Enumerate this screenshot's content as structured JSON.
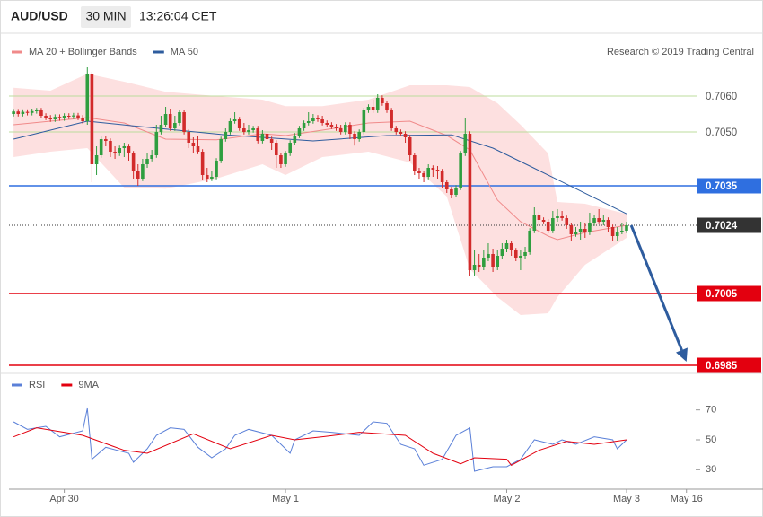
{
  "chart_data": [
    {
      "type": "candlestick",
      "title": "AUD/USD",
      "interval": "30 MIN",
      "time": "13:26:04 CET",
      "source": "Research © 2019 Trading Central",
      "xlim": [
        -1,
        148
      ],
      "ylim": [
        0.6984,
        0.7071
      ],
      "up_color": "#2f9e3f",
      "down_color": "#d22b2b",
      "open": [
        0.7055,
        0.70557,
        0.7055,
        0.70556,
        0.70553,
        0.70558,
        0.7056,
        0.70545,
        0.7054,
        0.70535,
        0.70542,
        0.70538,
        0.70545,
        0.70543,
        0.70546,
        0.7054,
        0.7053,
        0.7066,
        0.7041,
        0.70435,
        0.7048,
        0.70475,
        0.70445,
        0.7044,
        0.70455,
        0.7046,
        0.7044,
        0.7039,
        0.7037,
        0.7041,
        0.70425,
        0.70435,
        0.705,
        0.7052,
        0.7055,
        0.7051,
        0.70525,
        0.70555,
        0.705,
        0.7047,
        0.7046,
        0.70445,
        0.7038,
        0.7037,
        0.70375,
        0.7042,
        0.7048,
        0.705,
        0.7053,
        0.70535,
        0.7051,
        0.705,
        0.70505,
        0.7051,
        0.70475,
        0.70495,
        0.7048,
        0.7047,
        0.70435,
        0.7041,
        0.7044,
        0.7047,
        0.7049,
        0.7051,
        0.70525,
        0.7053,
        0.7054,
        0.70535,
        0.70525,
        0.7052,
        0.70515,
        0.7051,
        0.705,
        0.7052,
        0.70495,
        0.7048,
        0.705,
        0.7056,
        0.7057,
        0.7056,
        0.70595,
        0.7058,
        0.7056,
        0.7051,
        0.705,
        0.70495,
        0.70485,
        0.70435,
        0.7039,
        0.70385,
        0.70375,
        0.704,
        0.70395,
        0.7039,
        0.7036,
        0.7034,
        0.70325,
        0.70345,
        0.7044,
        0.70495,
        0.70115,
        0.7013,
        0.70125,
        0.7015,
        0.7016,
        0.70125,
        0.70155,
        0.70175,
        0.7019,
        0.7017,
        0.7015,
        0.70155,
        0.70165,
        0.70225,
        0.7027,
        0.70255,
        0.7025,
        0.70225,
        0.7026,
        0.70265,
        0.7026,
        0.7024,
        0.70215,
        0.7022,
        0.7023,
        0.7022,
        0.70245,
        0.7026,
        0.7025,
        0.70255,
        0.70235,
        0.7021,
        0.7022,
        0.70225
      ],
      "high": [
        0.70564,
        0.70564,
        0.70563,
        0.70563,
        0.70565,
        0.70567,
        0.70567,
        0.70552,
        0.70547,
        0.70549,
        0.70549,
        0.70552,
        0.70552,
        0.70553,
        0.70553,
        0.70547,
        0.7068,
        0.70667,
        0.7046,
        0.70487,
        0.7049,
        0.70482,
        0.7046,
        0.70462,
        0.7047,
        0.70467,
        0.70447,
        0.7041,
        0.70425,
        0.7044,
        0.7045,
        0.7052,
        0.70545,
        0.7057,
        0.70565,
        0.70545,
        0.70562,
        0.70562,
        0.70507,
        0.70485,
        0.7049,
        0.70452,
        0.704,
        0.7039,
        0.70427,
        0.70487,
        0.7051,
        0.70537,
        0.70555,
        0.70542,
        0.70525,
        0.7052,
        0.70517,
        0.70517,
        0.70505,
        0.70502,
        0.70487,
        0.70477,
        0.70442,
        0.70447,
        0.70477,
        0.70497,
        0.70517,
        0.70532,
        0.70555,
        0.7055,
        0.70547,
        0.70545,
        0.70532,
        0.70527,
        0.70522,
        0.7052,
        0.70527,
        0.70527,
        0.70502,
        0.70507,
        0.70567,
        0.70577,
        0.7059,
        0.70605,
        0.70602,
        0.70587,
        0.70567,
        0.70517,
        0.70507,
        0.70502,
        0.70492,
        0.70442,
        0.704,
        0.70392,
        0.7041,
        0.70407,
        0.70405,
        0.70397,
        0.70367,
        0.70347,
        0.70352,
        0.70447,
        0.7054,
        0.70502,
        0.7017,
        0.7016,
        0.7017,
        0.7019,
        0.70175,
        0.7017,
        0.7019,
        0.702,
        0.70197,
        0.70177,
        0.7017,
        0.7018,
        0.70232,
        0.7029,
        0.70277,
        0.70262,
        0.70257,
        0.7028,
        0.70285,
        0.7028,
        0.70267,
        0.70247,
        0.70235,
        0.7025,
        0.70245,
        0.70275,
        0.7027,
        0.70285,
        0.7027,
        0.70262,
        0.70242,
        0.70235,
        0.70245,
        0.7025
      ],
      "low": [
        0.70543,
        0.70543,
        0.70543,
        0.70546,
        0.70546,
        0.70551,
        0.70538,
        0.70533,
        0.70528,
        0.70528,
        0.70531,
        0.70531,
        0.70536,
        0.70536,
        0.70533,
        0.70523,
        0.7052,
        0.7036,
        0.7038,
        0.70428,
        0.7046,
        0.7043,
        0.70425,
        0.70433,
        0.7043,
        0.7042,
        0.7037,
        0.7035,
        0.70363,
        0.704,
        0.70418,
        0.70428,
        0.70493,
        0.70513,
        0.70503,
        0.70503,
        0.70518,
        0.70493,
        0.70455,
        0.7044,
        0.70438,
        0.70365,
        0.7036,
        0.70363,
        0.70368,
        0.70413,
        0.70473,
        0.70493,
        0.70523,
        0.70503,
        0.70493,
        0.70493,
        0.70498,
        0.70468,
        0.70468,
        0.70473,
        0.7045,
        0.704,
        0.704,
        0.70403,
        0.70433,
        0.70463,
        0.70483,
        0.70503,
        0.70518,
        0.70523,
        0.70528,
        0.70518,
        0.70513,
        0.70508,
        0.70503,
        0.70493,
        0.70493,
        0.7048,
        0.70462,
        0.70473,
        0.70493,
        0.70553,
        0.70553,
        0.70553,
        0.70573,
        0.70553,
        0.70503,
        0.70493,
        0.70488,
        0.7047,
        0.7042,
        0.7038,
        0.7037,
        0.7036,
        0.70368,
        0.70375,
        0.7037,
        0.70345,
        0.7033,
        0.70315,
        0.70318,
        0.70338,
        0.70433,
        0.701,
        0.701,
        0.7011,
        0.70115,
        0.7014,
        0.7011,
        0.70115,
        0.70145,
        0.70165,
        0.70155,
        0.7014,
        0.70115,
        0.70145,
        0.70158,
        0.70218,
        0.7024,
        0.70243,
        0.70218,
        0.70218,
        0.7025,
        0.70253,
        0.7023,
        0.70195,
        0.70208,
        0.702,
        0.70205,
        0.70213,
        0.70238,
        0.70243,
        0.7024,
        0.7022,
        0.70195,
        0.70195,
        0.70215,
        0.70218
      ],
      "close": [
        0.70557,
        0.7055,
        0.70556,
        0.70553,
        0.70558,
        0.7056,
        0.70545,
        0.7054,
        0.70535,
        0.70542,
        0.70538,
        0.70545,
        0.70543,
        0.70546,
        0.7054,
        0.7053,
        0.7066,
        0.7041,
        0.70435,
        0.7048,
        0.70475,
        0.70445,
        0.7044,
        0.70455,
        0.7046,
        0.7044,
        0.7039,
        0.7037,
        0.7041,
        0.70425,
        0.70435,
        0.705,
        0.7052,
        0.7055,
        0.7051,
        0.70525,
        0.70555,
        0.705,
        0.7047,
        0.7046,
        0.70445,
        0.7038,
        0.7037,
        0.70375,
        0.7042,
        0.7048,
        0.705,
        0.7053,
        0.70535,
        0.7051,
        0.705,
        0.70505,
        0.7051,
        0.70475,
        0.70495,
        0.7048,
        0.7047,
        0.70435,
        0.7041,
        0.7044,
        0.7047,
        0.7049,
        0.7051,
        0.70525,
        0.7053,
        0.7054,
        0.70535,
        0.70525,
        0.7052,
        0.70515,
        0.7051,
        0.705,
        0.7052,
        0.70495,
        0.7048,
        0.705,
        0.7056,
        0.7057,
        0.7056,
        0.70595,
        0.7058,
        0.7056,
        0.7051,
        0.705,
        0.70495,
        0.70485,
        0.70435,
        0.7039,
        0.70385,
        0.70375,
        0.704,
        0.70395,
        0.7039,
        0.7036,
        0.7034,
        0.70325,
        0.70345,
        0.7044,
        0.70495,
        0.70115,
        0.7013,
        0.70125,
        0.7015,
        0.7016,
        0.70125,
        0.70155,
        0.70175,
        0.7019,
        0.7017,
        0.7015,
        0.70155,
        0.70165,
        0.70225,
        0.7027,
        0.70255,
        0.7025,
        0.70225,
        0.7026,
        0.70265,
        0.7026,
        0.7024,
        0.70215,
        0.7022,
        0.7023,
        0.7022,
        0.70245,
        0.7026,
        0.7025,
        0.70255,
        0.70235,
        0.7021,
        0.7022,
        0.70225,
        0.7024
      ],
      "series": [
        {
          "name": "MA 20 + Bollinger Bands",
          "color": "#f08a8a",
          "band_color": "#fde0e0",
          "x": [
            0,
            8,
            16,
            24,
            33,
            44,
            54,
            59,
            67,
            77,
            86,
            94,
            99,
            105,
            110,
            116,
            118,
            124,
            133
          ],
          "values": [
            0.7052,
            0.7053,
            0.7054,
            0.70525,
            0.7048,
            0.70478,
            0.70495,
            0.7049,
            0.70505,
            0.70525,
            0.7053,
            0.7049,
            0.7045,
            0.7031,
            0.7025,
            0.7021,
            0.702,
            0.7022,
            0.7024
          ],
          "upper": [
            0.70623,
            0.70615,
            0.70662,
            0.7064,
            0.70612,
            0.706,
            0.7059,
            0.70572,
            0.70572,
            0.7059,
            0.7063,
            0.7063,
            0.70625,
            0.7058,
            0.7052,
            0.7044,
            0.70305,
            0.703,
            0.70272
          ],
          "lower": [
            0.7043,
            0.70445,
            0.70455,
            0.70345,
            0.70342,
            0.7037,
            0.7041,
            0.7038,
            0.7043,
            0.70445,
            0.70415,
            0.7032,
            0.70118,
            0.7004,
            0.6999,
            0.69995,
            0.7004,
            0.7013,
            0.70205
          ]
        },
        {
          "name": "MA 50",
          "color": "#2e5c9e",
          "x": [
            0,
            16,
            26,
            46,
            65,
            81,
            95,
            104,
            112,
            122,
            133
          ],
          "values": [
            0.7048,
            0.7053,
            0.70517,
            0.70492,
            0.70475,
            0.7049,
            0.70492,
            0.70455,
            0.70405,
            0.70342,
            0.70272
          ]
        }
      ],
      "levels": [
        {
          "value": 0.706,
          "label": "0.7060",
          "color": "#bcdc9c",
          "line": "solid",
          "box": false
        },
        {
          "value": 0.705,
          "label": "0.7050",
          "color": "#bcdc9c",
          "line": "solid",
          "box": false
        },
        {
          "value": 0.7035,
          "label": "0.7035",
          "color": "#2f6fe0",
          "line": "solid",
          "box": true
        },
        {
          "value": 0.7024,
          "label": "0.7024",
          "color": "#333333",
          "line": "dotted",
          "box": true
        },
        {
          "value": 0.7005,
          "label": "0.7005",
          "color": "#e3000f",
          "line": "solid",
          "box": true
        },
        {
          "value": 0.6985,
          "label": "0.6985",
          "color": "#e3000f",
          "line": "solid",
          "box": true
        }
      ],
      "arrow": {
        "x": [
          134,
          146
        ],
        "y": [
          0.7024,
          0.6986
        ],
        "color": "#2e5c9e"
      }
    },
    {
      "type": "line",
      "xlim": [
        -1,
        148
      ],
      "ylim": [
        20,
        80
      ],
      "yticks": [
        30,
        50,
        70
      ],
      "xticks": [
        {
          "value": 11,
          "label": "Apr 30"
        },
        {
          "value": 59,
          "label": "May 1"
        },
        {
          "value": 107,
          "label": "May 2"
        },
        {
          "value": 133,
          "label": "May 3"
        },
        {
          "value": 146,
          "label": "May 16"
        }
      ],
      "series": [
        {
          "name": "RSI",
          "color": "#5b80d8",
          "x": [
            0,
            3,
            7,
            10,
            15,
            16,
            17,
            20,
            25,
            26,
            29,
            31,
            34,
            37,
            40,
            43,
            46,
            48,
            51,
            56,
            60,
            61,
            65,
            69,
            75,
            78,
            81,
            84,
            87,
            89,
            93,
            96,
            99,
            100,
            104,
            107,
            110,
            113,
            117,
            119,
            122,
            126,
            130,
            131,
            133
          ],
          "values": [
            62,
            57,
            59,
            52,
            56,
            71,
            37,
            45,
            41,
            35,
            44,
            53,
            58,
            57,
            45,
            38,
            44,
            53,
            57,
            53,
            41,
            50,
            56,
            55,
            53,
            62,
            61,
            47,
            44,
            33,
            37,
            53,
            58,
            29,
            32,
            32,
            37,
            50,
            47,
            50,
            47,
            52,
            50,
            44,
            50
          ]
        },
        {
          "name": "9MA",
          "color": "#e3000f",
          "x": [
            0,
            5,
            9,
            15,
            24,
            29,
            39,
            47,
            56,
            61,
            67,
            75,
            85,
            91,
            97,
            100,
            107,
            108,
            114,
            120,
            126,
            133
          ],
          "values": [
            52,
            58,
            56,
            53,
            43,
            41,
            54,
            44,
            53,
            50,
            52,
            55,
            53,
            41,
            34,
            38,
            37,
            33,
            43,
            49,
            47,
            50
          ]
        }
      ]
    }
  ]
}
